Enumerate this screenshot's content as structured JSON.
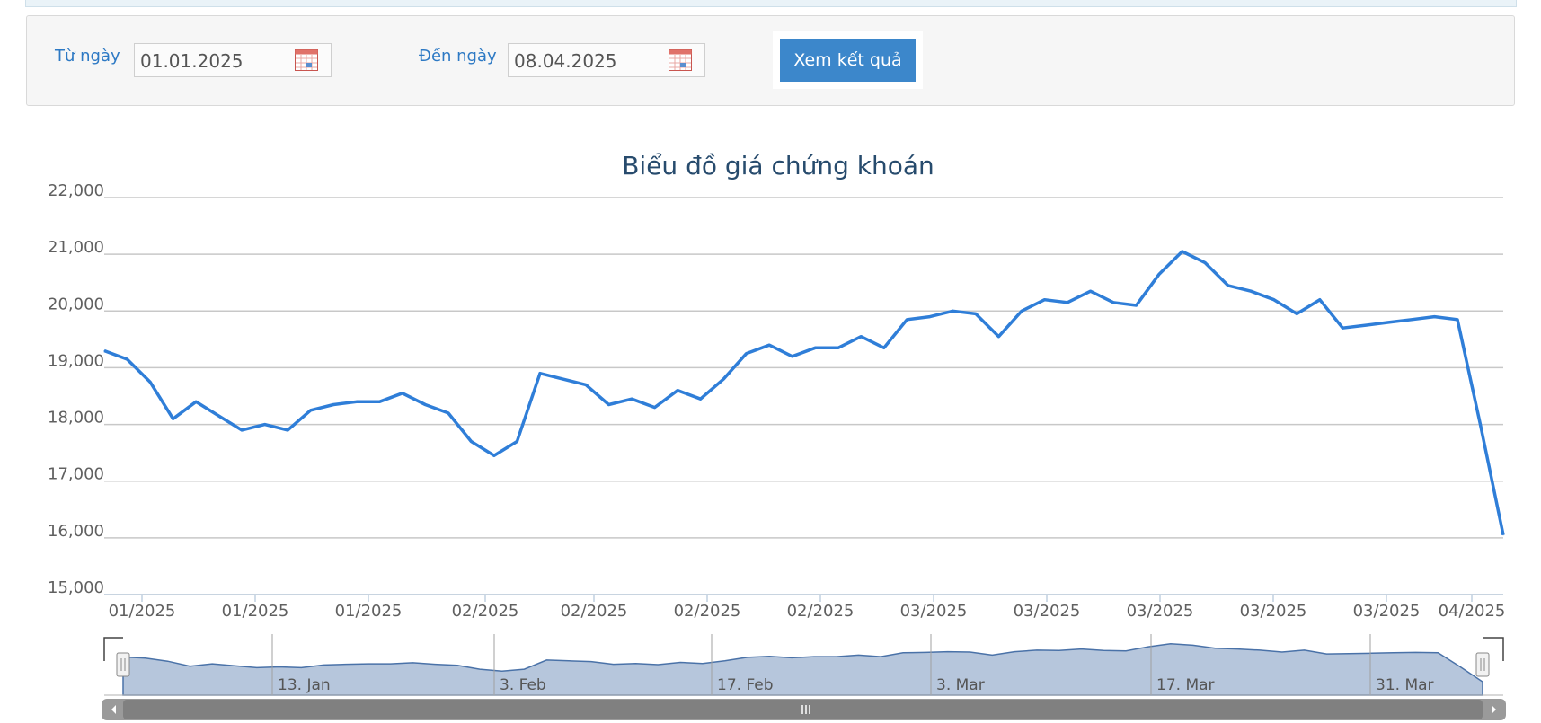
{
  "filter": {
    "from_label": "Từ ngày",
    "from_value": "01.01.2025",
    "to_label": "Đến ngày",
    "to_value": "08.04.2025",
    "submit_label": "Xem kết quả"
  },
  "colors": {
    "line": "#2f7ed8",
    "label": "#2d79c4",
    "button": "#3c87cb",
    "navigator_fill": "#b6c6dc",
    "navigator_line": "#4a72a8",
    "scrollbar": "#808080"
  },
  "chart_data": {
    "type": "line",
    "title": "Biểu đồ giá chứng khoán",
    "ylim": [
      15000,
      22000
    ],
    "y_ticks": [
      "22,000",
      "21,000",
      "20,000",
      "19,000",
      "18,000",
      "17,000",
      "16,000",
      "15,000"
    ],
    "x_ticks": [
      "01/2025",
      "01/2025",
      "01/2025",
      "02/2025",
      "02/2025",
      "02/2025",
      "02/2025",
      "03/2025",
      "03/2025",
      "03/2025",
      "03/2025",
      "03/2025",
      "04/2025"
    ],
    "grid": true,
    "legend": "none",
    "series": [
      {
        "values": [
          19300,
          19150,
          18750,
          18100,
          18400,
          18150,
          17900,
          18000,
          17900,
          18250,
          18350,
          18400,
          18400,
          18550,
          18350,
          18200,
          17700,
          17450,
          17700,
          18900,
          18800,
          18700,
          18350,
          18450,
          18300,
          18600,
          18450,
          18800,
          19250,
          19400,
          19200,
          19350,
          19350,
          19550,
          19350,
          19850,
          19900,
          20000,
          19950,
          19550,
          20000,
          20200,
          20150,
          20350,
          20150,
          20100,
          20650,
          21050,
          20850,
          20450,
          20350,
          20200,
          19950,
          20200,
          19700,
          19750,
          19800,
          19850,
          19900,
          19850,
          18000,
          16050
        ]
      }
    ],
    "navigator": {
      "x_ticks": [
        "13. Jan",
        "3. Feb",
        "17. Feb",
        "3. Mar",
        "17. Mar",
        "31. Mar"
      ]
    }
  }
}
